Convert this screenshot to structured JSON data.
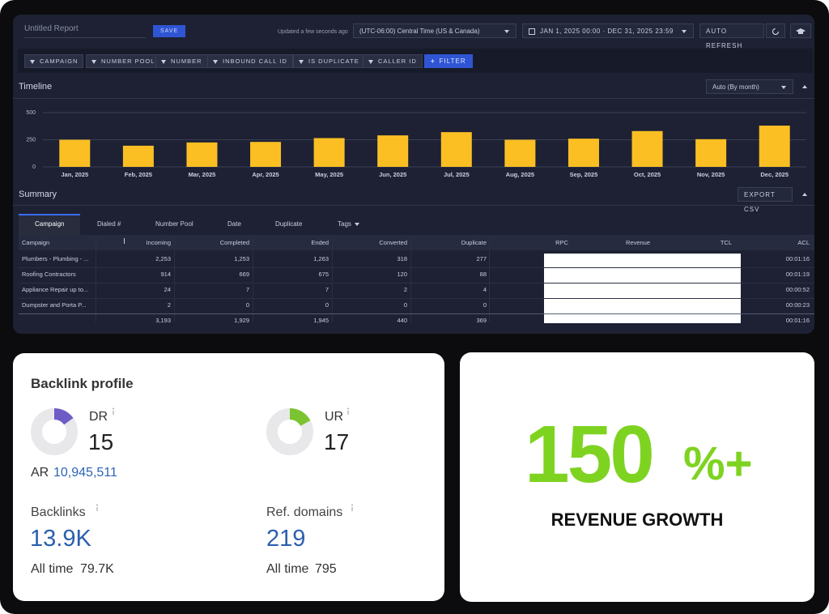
{
  "header": {
    "report_name": "Untitled Report",
    "save": "SAVE",
    "updated": "Updated a few seconds ago",
    "timezone": "(UTC-06:00) Central Time (US & Canada)",
    "date_range": "JAN 1, 2025 00:00 · DEC 31, 2025 23:59",
    "auto_refresh": "AUTO REFRESH"
  },
  "filters": [
    "CAMPAIGN",
    "NUMBER POOL",
    "NUMBER",
    "INBOUND CALL ID",
    "IS DUPLICATE",
    "CALLER ID"
  ],
  "add_filter": "FILTER",
  "timeline": {
    "title": "Timeline",
    "granularity": "Auto (By month)"
  },
  "chart_data": {
    "type": "bar",
    "categories": [
      "Jan, 2025",
      "Feb, 2025",
      "Mar, 2025",
      "Apr, 2025",
      "May, 2025",
      "Jun, 2025",
      "Jul, 2025",
      "Aug, 2025",
      "Sep, 2025",
      "Oct, 2025",
      "Nov, 2025",
      "Dec, 2025"
    ],
    "values": [
      250,
      195,
      225,
      230,
      265,
      290,
      320,
      250,
      260,
      330,
      255,
      380
    ],
    "color": "#fbbf24",
    "ylim": [
      0,
      500
    ],
    "yticks": [
      0,
      250,
      500
    ],
    "grid": true
  },
  "summary": {
    "title": "Summary",
    "export": "EXPORT CSV",
    "tabs": [
      "Campaign",
      "Dialed #",
      "Number Pool",
      "Date",
      "Duplicate",
      "Tags"
    ],
    "columns": [
      "Campaign",
      "Incoming",
      "Completed",
      "Ended",
      "Converted",
      "Duplicate",
      "RPC",
      "Revenue",
      "TCL",
      "ACL"
    ],
    "rows": [
      {
        "campaign": "Plumbers - Plumbing - ...",
        "incoming": "2,253",
        "completed": "1,253",
        "ended": "1,263",
        "converted": "318",
        "duplicate": "277",
        "acl": "00:01:16"
      },
      {
        "campaign": "Roofing Contractors",
        "incoming": "914",
        "completed": "669",
        "ended": "675",
        "converted": "120",
        "duplicate": "88",
        "acl": "00:01:19"
      },
      {
        "campaign": "Appliance Repair up to...",
        "incoming": "24",
        "completed": "7",
        "ended": "7",
        "converted": "2",
        "duplicate": "4",
        "acl": "00:00:52"
      },
      {
        "campaign": "Dumpster and Porta P...",
        "incoming": "2",
        "completed": "0",
        "ended": "0",
        "converted": "0",
        "duplicate": "0",
        "acl": "00:00:23"
      }
    ],
    "totals": {
      "incoming": "3,193",
      "completed": "1,929",
      "ended": "1,945",
      "converted": "440",
      "duplicate": "369",
      "acl": "00:01:16"
    }
  },
  "backlink": {
    "title": "Backlink profile",
    "dr": {
      "label": "DR",
      "value": 15
    },
    "ur": {
      "label": "UR",
      "value": 17
    },
    "ar": {
      "label": "AR",
      "value": "10,945,511"
    },
    "backlinks": {
      "label": "Backlinks",
      "value": "13.9K",
      "all_time_label": "All time",
      "all_time": "79.7K"
    },
    "ref_domains": {
      "label": "Ref. domains",
      "value": "219",
      "all_time_label": "All time",
      "all_time": "795"
    }
  },
  "growth": {
    "value": "150",
    "suffix": "%+",
    "label": "REVENUE GROWTH"
  }
}
